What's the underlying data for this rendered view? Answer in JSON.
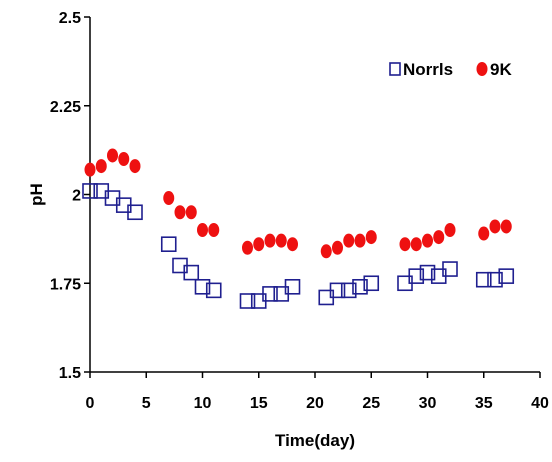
{
  "chart_data": {
    "type": "scatter",
    "title": "",
    "xlabel": "Time(day)",
    "ylabel": "pH",
    "xlim": [
      0,
      40
    ],
    "ylim": [
      1.5,
      2.5
    ],
    "xticks": [
      0,
      5,
      10,
      15,
      20,
      25,
      30,
      35,
      40
    ],
    "yticks": [
      1.5,
      1.75,
      2,
      2.25,
      2.5
    ],
    "xtick_labels": [
      "0",
      "5",
      "10",
      "15",
      "20",
      "25",
      "30",
      "35",
      "40"
    ],
    "ytick_labels": [
      "1.5",
      "1.75",
      "2",
      "2.25",
      "2.5"
    ],
    "grid": false,
    "legend_position": "top-right",
    "series": [
      {
        "name": "Norrls",
        "marker": "open-square",
        "color": "#1f1f8f",
        "x": [
          0,
          1,
          2,
          3,
          4,
          7,
          8,
          9,
          10,
          11,
          14,
          15,
          16,
          17,
          18,
          21,
          22,
          23,
          24,
          25,
          28,
          29,
          30,
          31,
          32,
          35,
          36,
          37
        ],
        "y": [
          2.01,
          2.01,
          1.99,
          1.97,
          1.95,
          1.86,
          1.8,
          1.78,
          1.74,
          1.73,
          1.7,
          1.7,
          1.72,
          1.72,
          1.74,
          1.71,
          1.73,
          1.73,
          1.74,
          1.75,
          1.75,
          1.77,
          1.78,
          1.77,
          1.79,
          1.76,
          1.76,
          1.77
        ]
      },
      {
        "name": "9K",
        "marker": "filled-circle",
        "color": "#ee1111",
        "x": [
          0,
          1,
          2,
          3,
          4,
          7,
          8,
          9,
          10,
          11,
          14,
          15,
          16,
          17,
          18,
          21,
          22,
          23,
          24,
          25,
          28,
          29,
          30,
          31,
          32,
          35,
          36,
          37
        ],
        "y": [
          2.07,
          2.08,
          2.11,
          2.1,
          2.08,
          1.99,
          1.95,
          1.95,
          1.9,
          1.9,
          1.85,
          1.86,
          1.87,
          1.87,
          1.86,
          1.84,
          1.85,
          1.87,
          1.87,
          1.88,
          1.86,
          1.86,
          1.87,
          1.88,
          1.9,
          1.89,
          1.91,
          1.91
        ]
      }
    ]
  }
}
